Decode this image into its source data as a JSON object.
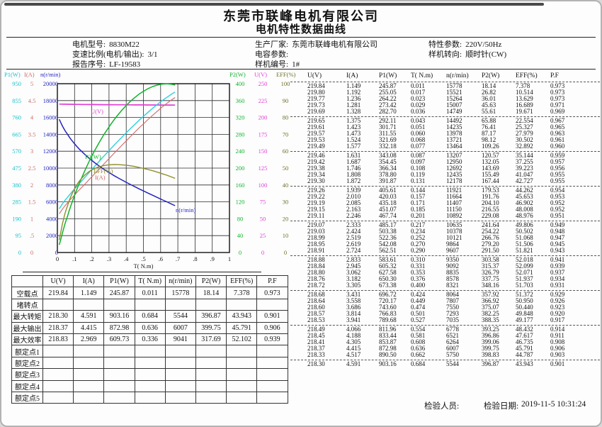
{
  "page": {
    "company": "东莞市联峰电机有限公司",
    "doc_title": "电机特性数据曲线"
  },
  "info": {
    "col1": [
      {
        "label": "电机型号:",
        "value": "8830M22"
      },
      {
        "label": "变速比例(电机/输出):",
        "value": "3/1"
      },
      {
        "label": "报告序号:",
        "value": "LF-19583"
      }
    ],
    "col2": [
      {
        "label": "生产厂家:",
        "value": "东莞市联峰电机有限公司"
      },
      {
        "label": "电容参数:",
        "value": ""
      },
      {
        "label": "样机编号:",
        "value": "1#"
      }
    ],
    "col3": [
      {
        "label": "特性参数:",
        "value": "220V/50Hz"
      },
      {
        "label": "样机转向:",
        "value": "顺时针(CW)"
      }
    ]
  },
  "chart_data": {
    "type": "line",
    "x_axis": {
      "label": "T( N.m)",
      "min": 0,
      "max": 1,
      "ticks": [
        "0",
        ".1",
        ".2",
        ".3",
        ".4",
        ".5",
        ".6",
        ".7",
        ".8",
        ".9",
        "1"
      ]
    },
    "left_axes": [
      {
        "title": "P1(W)",
        "color": "#17c1cb",
        "max": 950,
        "ticks": [
          "950",
          "855",
          "760",
          "665",
          "570",
          "475",
          "380",
          "285",
          "190",
          "95",
          "0"
        ]
      },
      {
        "title": "I(A)",
        "color": "#d06a6a",
        "max": 5,
        "ticks": [
          "5",
          "4.5",
          "4",
          "3.5",
          "3",
          "2.5",
          "2",
          "1.5",
          "1",
          ".5",
          "0"
        ]
      },
      {
        "title": "n(r/min)",
        "color": "#2323c0",
        "max": 20000,
        "ticks": [
          "20000",
          "18000",
          "16000",
          "14000",
          "12000",
          "10000",
          "8000",
          "6000",
          "4000",
          "2000",
          "0"
        ]
      }
    ],
    "right_axes": [
      {
        "title": "P2(W)",
        "color": "#10b42c",
        "max": 400,
        "ticks": [
          "400",
          "360",
          "320",
          "280",
          "240",
          "200",
          "160",
          "120",
          "80",
          "40",
          "0"
        ]
      },
      {
        "title": "U(V)",
        "color": "#e13fd4",
        "max": 250,
        "ticks": [
          "250",
          "225",
          "200",
          "175",
          "150",
          "125",
          "100",
          "75",
          "50",
          "25",
          "0"
        ]
      },
      {
        "title": "EFF(%)",
        "color": "#6f6f28",
        "max": 100,
        "ticks": [
          "100",
          "90",
          "80",
          "70",
          "60",
          "50",
          "40",
          "30",
          "20",
          "10",
          "0"
        ]
      }
    ],
    "series": [
      {
        "label": "U(V)",
        "color": "#e13fd4",
        "max": 250,
        "col": 0,
        "width": 1.7
      },
      {
        "label": "I(A)",
        "color": "#d06a6a",
        "max": 5,
        "col": 1,
        "width": 1.1
      },
      {
        "label": "P1(W)",
        "color": "#2ed0dd",
        "max": 950,
        "col": 2,
        "width": 1.4
      },
      {
        "label": "n(r/min)",
        "color": "#2323c0",
        "max": 20000,
        "col": 4,
        "width": 1.5
      },
      {
        "label": "P2(W)",
        "color": "#10b42c",
        "max": 400,
        "col": 5,
        "width": 1.5
      },
      {
        "label": "EFF(%)",
        "color": "#8f8f2b",
        "max": 100,
        "col": 6,
        "width": 1.4
      }
    ],
    "curve_labels": [
      {
        "text": "U(V)",
        "color": "#e13fd4",
        "x": 126,
        "y": 62
      },
      {
        "text": "P2(W)",
        "color": "#10b42c",
        "x": 118,
        "y": 126
      },
      {
        "text": "EFF(%)",
        "color": "#8f8f2b",
        "x": 130,
        "y": 146
      },
      {
        "text": "I(A)",
        "color": "#d06a6a",
        "x": 132,
        "y": 155
      },
      {
        "text": "n(r/min)",
        "color": "#2323c0",
        "x": 246,
        "y": 201
      }
    ]
  },
  "measurements": {
    "columns": [
      "U(V)",
      "I(A)",
      "P1(W)",
      "T( N.m)",
      "n(r/min)",
      "P2(W)",
      "EFF(%)",
      "P.F"
    ],
    "rows": [
      [
        "219.84",
        "1.149",
        "245.87",
        "0.011",
        "15778",
        "18.14",
        "7.378",
        "0.973"
      ],
      [
        "219.80",
        "1.192",
        "255.05",
        "0.017",
        "15521",
        "26.82",
        "10.514",
        "0.973"
      ],
      [
        "219.77",
        "1.236",
        "264.22",
        "0.023",
        "15264",
        "36.01",
        "13.629",
        "0.973"
      ],
      [
        "219.73",
        "1.281",
        "273.42",
        "0.029",
        "15007",
        "45.63",
        "16.689",
        "0.971"
      ],
      [
        "219.69",
        "1.328",
        "282.70",
        "0.036",
        "14749",
        "55.61",
        "19.671",
        "0.969"
      ],
      [
        "219.65",
        "1.375",
        "292.11",
        "0.043",
        "14492",
        "65.88",
        "22.554",
        "0.967"
      ],
      [
        "219.61",
        "1.423",
        "301.71",
        "0.051",
        "14235",
        "76.41",
        "25.327",
        "0.965"
      ],
      [
        "219.57",
        "1.473",
        "311.55",
        "0.060",
        "13978",
        "87.17",
        "27.979",
        "0.963"
      ],
      [
        "219.53",
        "1.524",
        "321.69",
        "0.068",
        "13721",
        "98.12",
        "30.502",
        "0.961"
      ],
      [
        "219.49",
        "1.577",
        "332.18",
        "0.077",
        "13464",
        "109.26",
        "32.892",
        "0.960"
      ],
      [
        "219.46",
        "1.631",
        "343.08",
        "0.087",
        "13207",
        "120.57",
        "35.144",
        "0.959"
      ],
      [
        "219.42",
        "1.687",
        "354.45",
        "0.097",
        "12950",
        "132.05",
        "37.255",
        "0.957"
      ],
      [
        "219.38",
        "1.746",
        "366.34",
        "0.108",
        "12692",
        "143.69",
        "39.223",
        "0.956"
      ],
      [
        "219.34",
        "1.808",
        "378.80",
        "0.119",
        "12435",
        "155.49",
        "41.047",
        "0.955"
      ],
      [
        "219.30",
        "1.872",
        "391.87",
        "0.131",
        "12178",
        "167.44",
        "42.727",
        "0.955"
      ],
      [
        "219.26",
        "1.939",
        "405.61",
        "0.144",
        "11921",
        "179.53",
        "44.262",
        "0.954"
      ],
      [
        "219.22",
        "2.010",
        "420.03",
        "0.157",
        "11664",
        "191.76",
        "45.653",
        "0.953"
      ],
      [
        "219.19",
        "2.085",
        "435.18",
        "0.171",
        "11407",
        "204.10",
        "46.902",
        "0.952"
      ],
      [
        "219.15",
        "2.163",
        "451.07",
        "0.185",
        "11150",
        "216.55",
        "48.008",
        "0.952"
      ],
      [
        "219.11",
        "2.246",
        "467.74",
        "0.201",
        "10892",
        "229.08",
        "48.976",
        "0.951"
      ],
      [
        "219.07",
        "2.333",
        "485.17",
        "0.217",
        "10635",
        "241.64",
        "49.806",
        "0.949"
      ],
      [
        "219.03",
        "2.424",
        "503.38",
        "0.234",
        "10378",
        "254.22",
        "50.502",
        "0.948"
      ],
      [
        "218.99",
        "2.519",
        "522.36",
        "0.252",
        "10121",
        "266.76",
        "51.068",
        "0.947"
      ],
      [
        "218.95",
        "2.619",
        "542.08",
        "0.270",
        "9864",
        "279.20",
        "51.506",
        "0.945"
      ],
      [
        "218.91",
        "2.724",
        "562.51",
        "0.290",
        "9607",
        "291.50",
        "51.821",
        "0.943"
      ],
      [
        "218.88",
        "2.833",
        "583.61",
        "0.310",
        "9350",
        "303.58",
        "52.018",
        "0.941"
      ],
      [
        "218.84",
        "2.945",
        "605.32",
        "0.331",
        "9092",
        "315.37",
        "52.099",
        "0.939"
      ],
      [
        "218.80",
        "3.062",
        "627.58",
        "0.353",
        "8835",
        "326.79",
        "52.071",
        "0.937"
      ],
      [
        "218.76",
        "3.182",
        "650.30",
        "0.376",
        "8578",
        "337.75",
        "51.937",
        "0.934"
      ],
      [
        "218.72",
        "3.305",
        "673.38",
        "0.400",
        "8321",
        "348.16",
        "51.703",
        "0.931"
      ],
      [
        "218.68",
        "3.431",
        "696.72",
        "0.424",
        "8064",
        "357.92",
        "51.372",
        "0.929"
      ],
      [
        "218.64",
        "3.558",
        "720.17",
        "0.449",
        "7807",
        "366.92",
        "50.950",
        "0.926"
      ],
      [
        "218.60",
        "3.686",
        "743.60",
        "0.474",
        "7550",
        "375.07",
        "50.440",
        "0.923"
      ],
      [
        "218.57",
        "3.814",
        "766.83",
        "0.501",
        "7293",
        "382.25",
        "49.848",
        "0.920"
      ],
      [
        "218.53",
        "3.941",
        "789.68",
        "0.527",
        "7035",
        "388.35",
        "49.177",
        "0.917"
      ],
      [
        "218.49",
        "4.066",
        "811.96",
        "0.554",
        "6778",
        "393.25",
        "48.432",
        "0.914"
      ],
      [
        "218.45",
        "4.188",
        "833.44",
        "0.581",
        "6521",
        "396.86",
        "47.617",
        "0.911"
      ],
      [
        "218.41",
        "4.305",
        "853.87",
        "0.608",
        "6264",
        "399.06",
        "46.735",
        "0.908"
      ],
      [
        "218.37",
        "4.415",
        "872.98",
        "0.636",
        "6007",
        "399.75",
        "45.791",
        "0.906"
      ],
      [
        "218.33",
        "4.517",
        "890.50",
        "0.662",
        "5750",
        "398.83",
        "44.787",
        "0.903"
      ],
      [
        "218.30",
        "4.591",
        "903.16",
        "0.684",
        "5544",
        "396.87",
        "43.943",
        "0.901"
      ]
    ]
  },
  "summary": {
    "columns": [
      "",
      "U(V)",
      "I(A)",
      "P1(W)",
      "T( N.m)",
      "n(r/min)",
      "P2(W)",
      "EFF(%)",
      "P.F"
    ],
    "rows": [
      {
        "label": "空载点",
        "values": [
          "219.84",
          "1.149",
          "245.87",
          "0.011",
          "15778",
          "18.14",
          "7.378",
          "0.973"
        ]
      },
      {
        "label": "堵转点",
        "values": [
          "",
          "",
          "",
          "",
          "",
          "",
          "",
          ""
        ]
      },
      {
        "label": "最大转矩",
        "values": [
          "218.30",
          "4.591",
          "903.16",
          "0.684",
          "5544",
          "396.87",
          "43.943",
          "0.901"
        ]
      },
      {
        "label": "最大输出",
        "values": [
          "218.37",
          "4.415",
          "872.98",
          "0.636",
          "6007",
          "399.75",
          "45.791",
          "0.906"
        ]
      },
      {
        "label": "最大效率",
        "values": [
          "218.83",
          "2.969",
          "609.73",
          "0.336",
          "9041",
          "317.69",
          "52.102",
          "0.939"
        ]
      },
      {
        "label": "额定点1",
        "values": [
          "",
          "",
          "",
          "",
          "",
          "",
          "",
          ""
        ]
      },
      {
        "label": "额定点2",
        "values": [
          "",
          "",
          "",
          "",
          "",
          "",
          "",
          ""
        ]
      },
      {
        "label": "额定点3",
        "values": [
          "",
          "",
          "",
          "",
          "",
          "",
          "",
          ""
        ]
      },
      {
        "label": "额定点4",
        "values": [
          "",
          "",
          "",
          "",
          "",
          "",
          "",
          ""
        ]
      },
      {
        "label": "额定点5",
        "values": [
          "",
          "",
          "",
          "",
          "",
          "",
          "",
          ""
        ]
      }
    ]
  },
  "footer": {
    "inspector_label": "检验人员:",
    "date_label": "检验日期:",
    "date_value": "2019-11-5 10:31:24"
  }
}
